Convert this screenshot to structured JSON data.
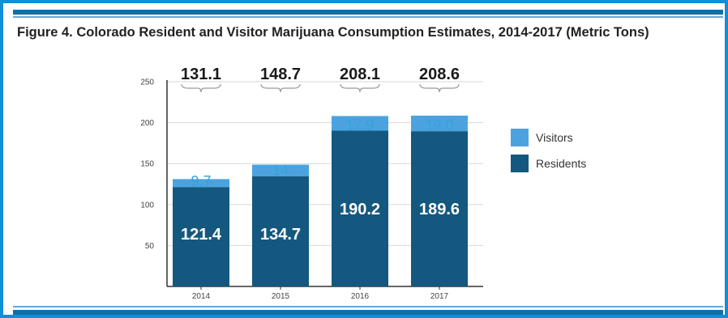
{
  "title": "Figure 4. Colorado Resident and Visitor Marijuana Consumption Estimates, 2014-2017 (Metric Tons)",
  "colors": {
    "page_border": "#0f8fd9",
    "rule": "#0f6fa9",
    "residents": "#14587f",
    "visitors": "#4aa3df",
    "visitor_text": "#3aa0dc"
  },
  "chart_data": {
    "type": "bar",
    "stacked": true,
    "categories": [
      "2014",
      "2015",
      "2016",
      "2017"
    ],
    "series": [
      {
        "name": "Residents",
        "values": [
          121.4,
          134.7,
          190.2,
          189.6
        ],
        "labels": [
          "121.4",
          "134.7",
          "190.2",
          "189.6"
        ]
      },
      {
        "name": "Visitors",
        "values": [
          9.7,
          14,
          17.9,
          19.0
        ],
        "labels": [
          "9.7",
          "14",
          "17.9",
          "19.0"
        ]
      }
    ],
    "totals": [
      "131.1",
      "148.7",
      "208.1",
      "208.6"
    ],
    "ylim": [
      0,
      250
    ],
    "yticks": [
      "50",
      "100",
      "150",
      "200",
      "250"
    ],
    "grid": true,
    "legend": {
      "position": "right",
      "order": [
        "Visitors",
        "Residents"
      ]
    }
  }
}
